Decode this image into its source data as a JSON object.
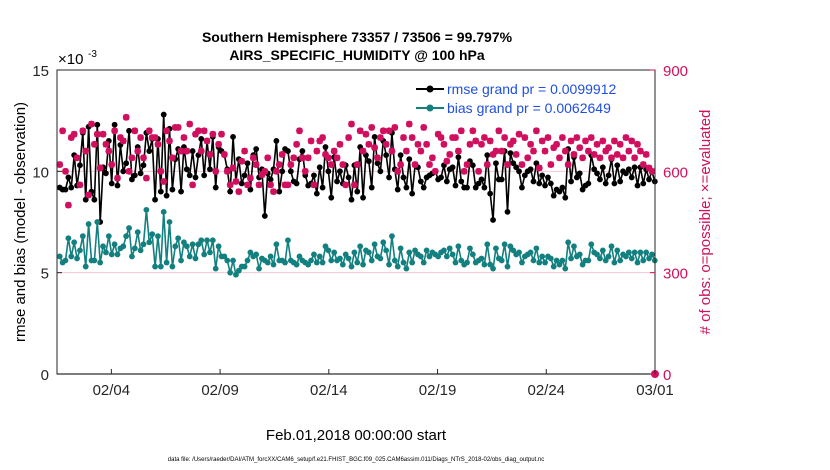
{
  "chart_data": {
    "type": "line",
    "title": "Southern Hemisphere 73357 / 73506 = 99.797%",
    "subtitle": "AIRS_SPECIFIC_HUMIDITY @ 100 hPa",
    "xlabel": "Feb.01,2018 00:00:00 start",
    "ylabel_left": "rmse and bias (model - observation)",
    "ylabel_right": "# of obs: o=possible; ×=evaluated",
    "y_exponent": "×10",
    "y_exponent_power": "-3",
    "footnote": "data file: /Users/raeder/DAI/ATM_forcXX/CAM6_setup/f.e21.FHIST_BGC.f09_025.CAM6assim.011/Diags_NTrS_2018-02/obs_diag_output.nc",
    "xlim": [
      32.5,
      60.0
    ],
    "ylim_left": [
      0,
      15
    ],
    "ylim_right": [
      0,
      900
    ],
    "x_ticks": [
      {
        "value": 35,
        "label": "02/04"
      },
      {
        "value": 40,
        "label": "02/09"
      },
      {
        "value": 45,
        "label": "02/14"
      },
      {
        "value": 50,
        "label": "02/19"
      },
      {
        "value": 55,
        "label": "02/24"
      },
      {
        "value": 60,
        "label": "03/01"
      }
    ],
    "y_left_ticks": [
      {
        "value": 0,
        "label": "0"
      },
      {
        "value": 5,
        "label": "5"
      },
      {
        "value": 10,
        "label": "10"
      },
      {
        "value": 15,
        "label": "15"
      }
    ],
    "y_right_ticks": [
      {
        "value": 0,
        "label": "0"
      },
      {
        "value": 300,
        "label": "300"
      },
      {
        "value": 600,
        "label": "600"
      },
      {
        "value": 900,
        "label": "900"
      }
    ],
    "series": [
      {
        "name": "rmse grand pr = 0.0099912",
        "color": "#000000",
        "axis": "left",
        "values": [
          9.2,
          9.1,
          9.1,
          9.7,
          9.2,
          10.8,
          9.3,
          10.3,
          11.9,
          8.6,
          12.2,
          9.0,
          8.6,
          12.3,
          7.5,
          10.2,
          9.9,
          11.5,
          9.4,
          12.3,
          9.3,
          11.3,
          10.0,
          10.4,
          12.0,
          9.6,
          9.8,
          11.2,
          9.9,
          10.3,
          11.9,
          11.0,
          11.6,
          8.6,
          11.6,
          9.0,
          12.8,
          8.8,
          12.1,
          9.1,
          10.6,
          11.1,
          9.0,
          11.2,
          10.1,
          9.8,
          11.0,
          9.7,
          10.8,
          11.6,
          9.8,
          11.5,
          10.1,
          11.7,
          9.2,
          11.2,
          11.0,
          10.8,
          10.1,
          9.0,
          11.7,
          9.5,
          10.6,
          9.4,
          9.8,
          10.4,
          9.1,
          10.8,
          11.1,
          9.7,
          10.1,
          7.8,
          9.9,
          9.6,
          10.1,
          11.5,
          9.0,
          10.0,
          11.1,
          11.0,
          10.0,
          9.5,
          9.4,
          10.6,
          11.0,
          9.8,
          9.3,
          9.4,
          9.8,
          8.9,
          10.2,
          9.2,
          11.2,
          10.0,
          8.7,
          10.7,
          9.5,
          10.0,
          9.4,
          10.3,
          9.7,
          8.6,
          10.3,
          9.0,
          11.2,
          8.7,
          10.8,
          10.5,
          9.2,
          11.7,
          10.4,
          10.0,
          11.5,
          10.8,
          9.7,
          11.9,
          10.1,
          9.1,
          10.8,
          9.7,
          9.2,
          10.6,
          8.9,
          10.3,
          10.2,
          9.5,
          9.2,
          9.7,
          9.8,
          9.9,
          10.0,
          9.6,
          9.7,
          10.3,
          9.5,
          10.1,
          10.2,
          9.3,
          10.7,
          9.5,
          9.2,
          9.2,
          10.5,
          10.3,
          9.2,
          9.4,
          9.6,
          9.2,
          10.8,
          8.9,
          7.6,
          10.4,
          9.6,
          9.6,
          11.0,
          8.0,
          10.9,
          10.4,
          10.2,
          10.0,
          9.2,
          9.8,
          10.0,
          10.1,
          9.5,
          10.4,
          9.4,
          9.8,
          9.3,
          9.7,
          9.4,
          8.8,
          9.1,
          9.0,
          9.2,
          8.7,
          11.1,
          9.5,
          10.7,
          9.7,
          9.9,
          9.1,
          9.3,
          9.4,
          10.8,
          10.1,
          9.9,
          9.6,
          10.2,
          9.4,
          9.8,
          10.6,
          9.4,
          10.3,
          9.5,
          10.0,
          9.9,
          10.1,
          9.7,
          10.2,
          9.3,
          10.2,
          9.4,
          10.1,
          9.6,
          10.0,
          9.5
        ]
      },
      {
        "name": "bias grand pr = 0.0062649",
        "color": "#138080",
        "axis": "left",
        "values": [
          5.8,
          5.5,
          5.6,
          6.7,
          5.8,
          6.5,
          5.7,
          6.1,
          6.8,
          5.3,
          7.4,
          5.6,
          5.6,
          7.5,
          5.5,
          6.3,
          6.0,
          6.8,
          5.9,
          6.4,
          5.9,
          6.2,
          6.3,
          6.8,
          7.2,
          5.8,
          6.2,
          7.0,
          6.1,
          6.4,
          8.1,
          6.5,
          6.9,
          5.3,
          6.8,
          5.3,
          8.0,
          5.5,
          7.5,
          5.3,
          6.3,
          6.7,
          5.6,
          6.5,
          6.3,
          5.8,
          6.4,
          5.7,
          6.4,
          6.6,
          5.9,
          6.6,
          6.0,
          6.6,
          5.2,
          6.3,
          5.8,
          5.8,
          5.6,
          5.0,
          5.6,
          4.9,
          5.1,
          5.3,
          5.3,
          5.6,
          6.0,
          5.8,
          5.9,
          5.2,
          5.7,
          5.6,
          5.5,
          5.8,
          5.4,
          6.4,
          5.6,
          5.6,
          5.5,
          6.6,
          5.6,
          5.5,
          5.4,
          5.8,
          5.6,
          5.5,
          5.4,
          5.6,
          5.9,
          5.5,
          5.8,
          5.5,
          6.3,
          6.1,
          5.6,
          6.0,
          5.6,
          5.7,
          5.4,
          5.9,
          5.7,
          5.3,
          6.0,
          5.5,
          6.3,
          5.4,
          6.1,
          6.0,
          5.6,
          6.4,
          5.8,
          5.7,
          6.5,
          6.1,
          5.4,
          6.8,
          5.6,
          5.3,
          6.2,
          5.5,
          5.2,
          6.0,
          5.5,
          6.1,
          5.9,
          5.8,
          5.5,
          6.1,
          5.8,
          6.0,
          5.9,
          5.8,
          6.0,
          6.1,
          5.8,
          6.2,
          5.9,
          5.5,
          6.3,
          5.6,
          5.4,
          5.5,
          6.2,
          5.9,
          5.5,
          5.6,
          5.7,
          5.4,
          6.4,
          5.4,
          5.2,
          6.2,
          5.7,
          5.6,
          6.4,
          5.3,
          6.3,
          6.1,
          5.9,
          6.0,
          5.5,
          5.8,
          5.9,
          6.0,
          5.6,
          6.2,
          5.5,
          5.8,
          5.5,
          5.8,
          5.7,
          5.3,
          5.6,
          5.4,
          5.6,
          5.2,
          6.5,
          5.7,
          6.3,
          5.8,
          5.9,
          5.4,
          5.6,
          5.6,
          6.4,
          6.0,
          5.9,
          5.7,
          6.1,
          5.6,
          5.8,
          6.3,
          5.5,
          6.1,
          5.6,
          5.9,
          5.8,
          6.0,
          5.7,
          6.0,
          5.5,
          6.0,
          5.6,
          6.0,
          5.7,
          5.9,
          5.6
        ]
      },
      {
        "name": "# of obs possible",
        "color": "#d0105e",
        "axis": "right",
        "marker": "o",
        "values": [
          620,
          720,
          600,
          500,
          700,
          710,
          640,
          560,
          720,
          660,
          530,
          740,
          680,
          710,
          610,
          710,
          680,
          660,
          620,
          720,
          580,
          700,
          690,
          760,
          600,
          640,
          720,
          660,
          700,
          640,
          580,
          720,
          700,
          700,
          680,
          600,
          570,
          720,
          690,
          640,
          730,
          730,
          660,
          700,
          660,
          740,
          560,
          710,
          720,
          660,
          720,
          690,
          650,
          710,
          600,
          680,
          710,
          650,
          600,
          560,
          610,
          570,
          540,
          630,
          660,
          560,
          580,
          640,
          620,
          560,
          590,
          600,
          640,
          560,
          540,
          600,
          620,
          650,
          560,
          560,
          620,
          640,
          680,
          720,
          640,
          600,
          640,
          690,
          560,
          660,
          690,
          700,
          650,
          640,
          620,
          660,
          640,
          680,
          620,
          560,
          700,
          740,
          560,
          620,
          720,
          660,
          710,
          680,
          730,
          670,
          640,
          700,
          720,
          680,
          720,
          660,
          730,
          600,
          620,
          700,
          660,
          740,
          700,
          620,
          680,
          660,
          730,
          680,
          620,
          640,
          600,
          710,
          700,
          680,
          630,
          650,
          700,
          700,
          660,
          720,
          600,
          620,
          680,
          720,
          690,
          600,
          680,
          700,
          620,
          690,
          650,
          660,
          720,
          660,
          700,
          620,
          680,
          690,
          650,
          710,
          620,
          700,
          640,
          680,
          660,
          720,
          610,
          690,
          660,
          700,
          620,
          670,
          680,
          640,
          700,
          660,
          620,
          690,
          650,
          700,
          670,
          640,
          690,
          660,
          700,
          650,
          680,
          640,
          690,
          660,
          670,
          640,
          690,
          650,
          680,
          640,
          700,
          660,
          690,
          640,
          680,
          660,
          620,
          650,
          610,
          600
        ]
      },
      {
        "name": "# of obs evaluated",
        "color": "#d0105e",
        "axis": "right",
        "marker": "x",
        "values": [
          620,
          720,
          600,
          500,
          700,
          710,
          640,
          560,
          720,
          660,
          530,
          740,
          680,
          710,
          610,
          710,
          680,
          660,
          620,
          720,
          580,
          700,
          690,
          760,
          600,
          640,
          720,
          660,
          700,
          640,
          580,
          720,
          700,
          700,
          680,
          600,
          570,
          720,
          690,
          640,
          730,
          730,
          660,
          700,
          660,
          740,
          560,
          710,
          720,
          660,
          720,
          690,
          650,
          710,
          600,
          680,
          710,
          650,
          600,
          560,
          610,
          570,
          540,
          630,
          660,
          560,
          580,
          640,
          620,
          560,
          590,
          600,
          640,
          560,
          540,
          600,
          620,
          650,
          560,
          560,
          620,
          640,
          680,
          720,
          640,
          600,
          640,
          690,
          560,
          660,
          690,
          700,
          650,
          640,
          620,
          660,
          640,
          680,
          620,
          560,
          700,
          740,
          560,
          620,
          720,
          660,
          710,
          680,
          730,
          670,
          640,
          700,
          720,
          680,
          720,
          660,
          730,
          600,
          620,
          700,
          660,
          740,
          700,
          620,
          680,
          660,
          730,
          680,
          620,
          640,
          600,
          710,
          700,
          680,
          630,
          650,
          700,
          700,
          660,
          720,
          600,
          620,
          680,
          720,
          690,
          600,
          680,
          700,
          620,
          690,
          650,
          660,
          720,
          660,
          700,
          620,
          680,
          690,
          650,
          710,
          620,
          700,
          640,
          680,
          660,
          720,
          610,
          690,
          660,
          700,
          620,
          670,
          680,
          640,
          700,
          660,
          620,
          690,
          650,
          700,
          670,
          640,
          690,
          660,
          700,
          650,
          680,
          640,
          690,
          660,
          670,
          640,
          690,
          650,
          680,
          640,
          700,
          660,
          690,
          640,
          680,
          660,
          620,
          650,
          610,
          600
        ]
      }
    ]
  }
}
